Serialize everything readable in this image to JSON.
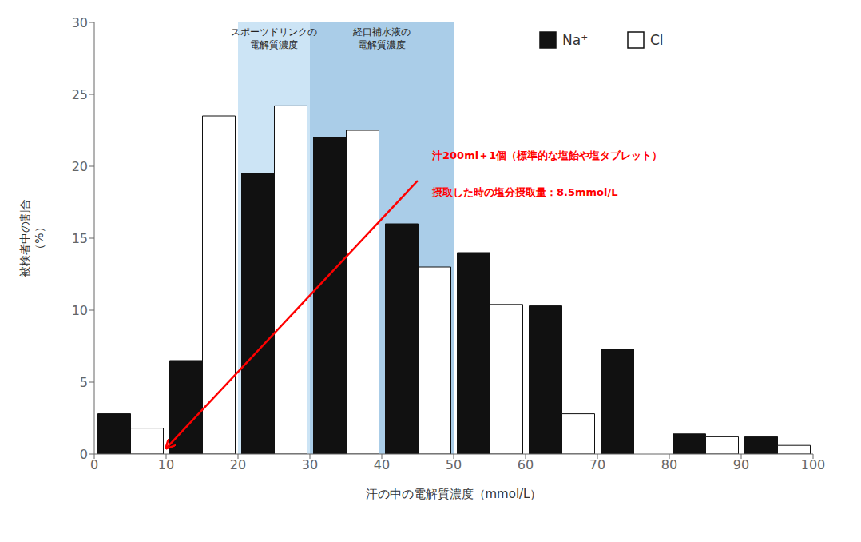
{
  "chart_data": {
    "type": "bar",
    "x": [
      5,
      15,
      25,
      35,
      45,
      55,
      65,
      75,
      85,
      95
    ],
    "series": [
      {
        "name": "Na⁺",
        "color": "#111111",
        "values": [
          2.8,
          6.5,
          19.5,
          22.0,
          16.0,
          14.0,
          10.3,
          7.3,
          1.4,
          1.2
        ]
      },
      {
        "name": "Cl⁻",
        "color": "#ffffff",
        "values": [
          1.8,
          23.5,
          24.2,
          22.5,
          13.0,
          10.4,
          2.8,
          0.0,
          1.2,
          0.6
        ]
      }
    ],
    "xlabel": "汗の中の電解質濃度（mmol/L）",
    "ylabel": "被検者中の割合\n（%）",
    "xlim": [
      0,
      100
    ],
    "xticks": [
      0,
      10,
      20,
      30,
      40,
      50,
      60,
      70,
      80,
      90,
      100
    ],
    "ylim": [
      0,
      30
    ],
    "yticks": [
      0,
      5,
      10,
      15,
      20,
      25,
      30
    ],
    "grid": false,
    "legend": "upper right",
    "shaded_regions": [
      {
        "x": [
          20,
          30
        ],
        "color": "#cce4f5",
        "label": "スポーツドリンクの\n電解質濃度"
      },
      {
        "x": [
          30,
          50
        ],
        "color": "#aacde8",
        "label": "経口補水液の\n電解質濃度"
      }
    ],
    "annotations": [
      {
        "text": "汁200ml＋1個（標準的な塩飴や塩タブレット）\n摂取した時の塩分摂取量：8.5mmol/L"
      }
    ]
  }
}
